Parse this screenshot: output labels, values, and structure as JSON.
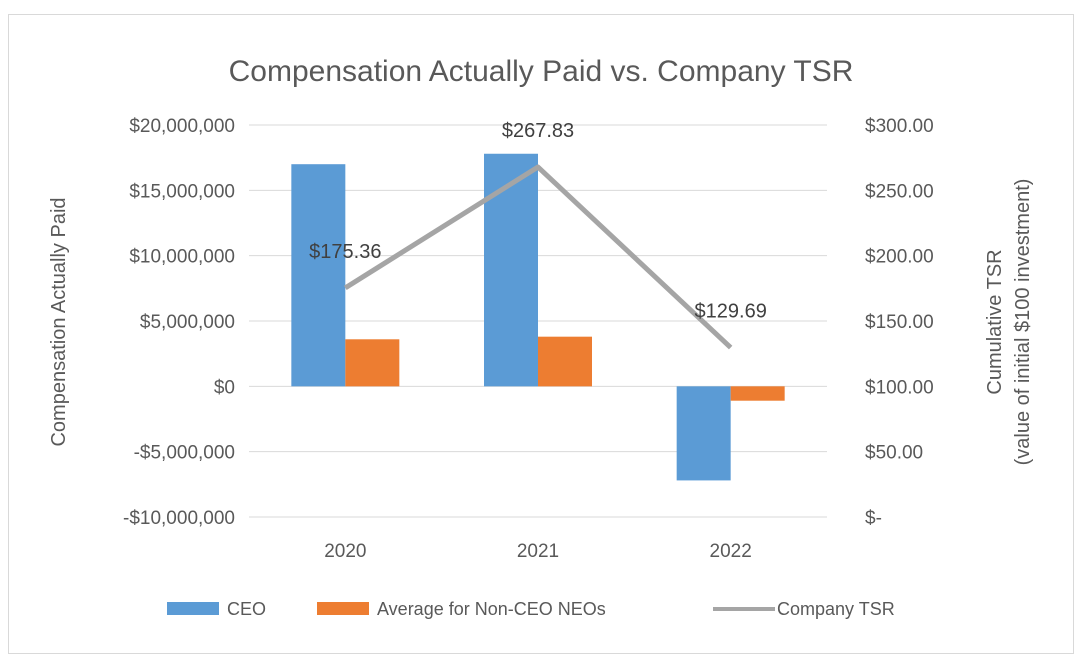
{
  "chart_data": {
    "type": "bar",
    "title": "Compensation Actually Paid vs. Company TSR",
    "categories": [
      "2020",
      "2021",
      "2022"
    ],
    "series": [
      {
        "name": "CEO",
        "axis": "left",
        "kind": "bar",
        "color": "#5b9bd5",
        "values": [
          17000000,
          17800000,
          -7200000
        ]
      },
      {
        "name": "Average for Non-CEO NEOs",
        "axis": "left",
        "kind": "bar",
        "color": "#ed7d31",
        "values": [
          3600000,
          3800000,
          -1100000
        ]
      },
      {
        "name": "Company TSR",
        "axis": "right",
        "kind": "line",
        "color": "#a5a5a5",
        "values": [
          175.36,
          267.83,
          129.69
        ]
      }
    ],
    "data_labels": [
      "$175.36",
      "$267.83",
      "$129.69"
    ],
    "ylabel": "Compensation Actually Paid",
    "y2label_line1": "Cumulative TSR",
    "y2label_line2": "(value of initial $100 investment)",
    "ylim": [
      -10000000,
      20000000
    ],
    "y2lim": [
      0,
      300
    ],
    "yticks": [
      20000000,
      15000000,
      10000000,
      5000000,
      0,
      -5000000,
      -10000000
    ],
    "ytick_labels": [
      "$20,000,000",
      "$15,000,000",
      "$10,000,000",
      "$5,000,000",
      "$0",
      "-$5,000,000",
      "-$10,000,000"
    ],
    "y2ticks": [
      300,
      250,
      200,
      150,
      100,
      50,
      0
    ],
    "y2tick_labels": [
      "$300.00",
      "$250.00",
      "$200.00",
      "$150.00",
      "$100.00",
      "$50.00",
      "$-"
    ],
    "legend": [
      "CEO",
      "Average for Non-CEO NEOs",
      "Company TSR"
    ],
    "legend_position": "bottom",
    "grid": true
  }
}
